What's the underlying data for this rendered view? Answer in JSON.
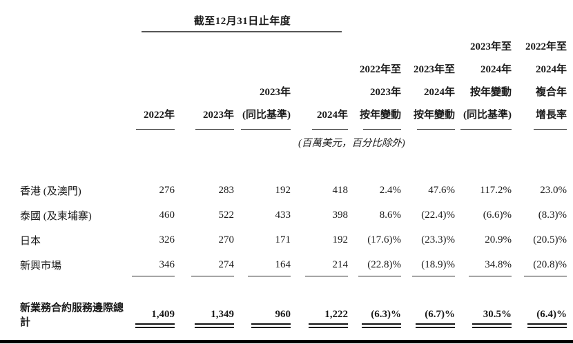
{
  "table": {
    "group_header": "截至12月31日止年度",
    "unit_note": "(百萬美元，百分比除外)",
    "columns": [
      {
        "lines": [
          "2022年"
        ]
      },
      {
        "lines": [
          "2023年"
        ]
      },
      {
        "lines": [
          "2023年",
          "(同比基準)"
        ]
      },
      {
        "lines": [
          "2024年"
        ]
      },
      {
        "lines": [
          "2022年至",
          "2023年",
          "按年變動"
        ]
      },
      {
        "lines": [
          "2023年至",
          "2024年",
          "按年變動"
        ]
      },
      {
        "lines": [
          "2023年至",
          "2024年",
          "按年變動",
          "(同比基準)"
        ]
      },
      {
        "lines": [
          "2022年至",
          "2024年",
          "複合年",
          "增長率"
        ]
      }
    ],
    "rows": [
      {
        "label": "香港 (及澳門)",
        "values": [
          "276",
          "283",
          "192",
          "418",
          "2.4%",
          "47.6%",
          "117.2%",
          "23.0%"
        ]
      },
      {
        "label": "泰國 (及柬埔寨)",
        "values": [
          "460",
          "522",
          "433",
          "398",
          "8.6%",
          "(22.4)%",
          "(6.6)%",
          "(8.3)%"
        ]
      },
      {
        "label": "日本",
        "values": [
          "326",
          "270",
          "171",
          "192",
          "(17.6)%",
          "(23.3)%",
          "20.9%",
          "(20.5)%"
        ]
      },
      {
        "label": "新興市場",
        "values": [
          "346",
          "274",
          "164",
          "214",
          "(22.8)%",
          "(18.9)%",
          "34.8%",
          "(20.8)%"
        ]
      }
    ],
    "total": {
      "label": "新業務合約服務邊際總計",
      "values": [
        "1,409",
        "1,349",
        "960",
        "1,222",
        "(6.3)%",
        "(6.7)%",
        "30.5%",
        "(6.4)%"
      ]
    }
  }
}
